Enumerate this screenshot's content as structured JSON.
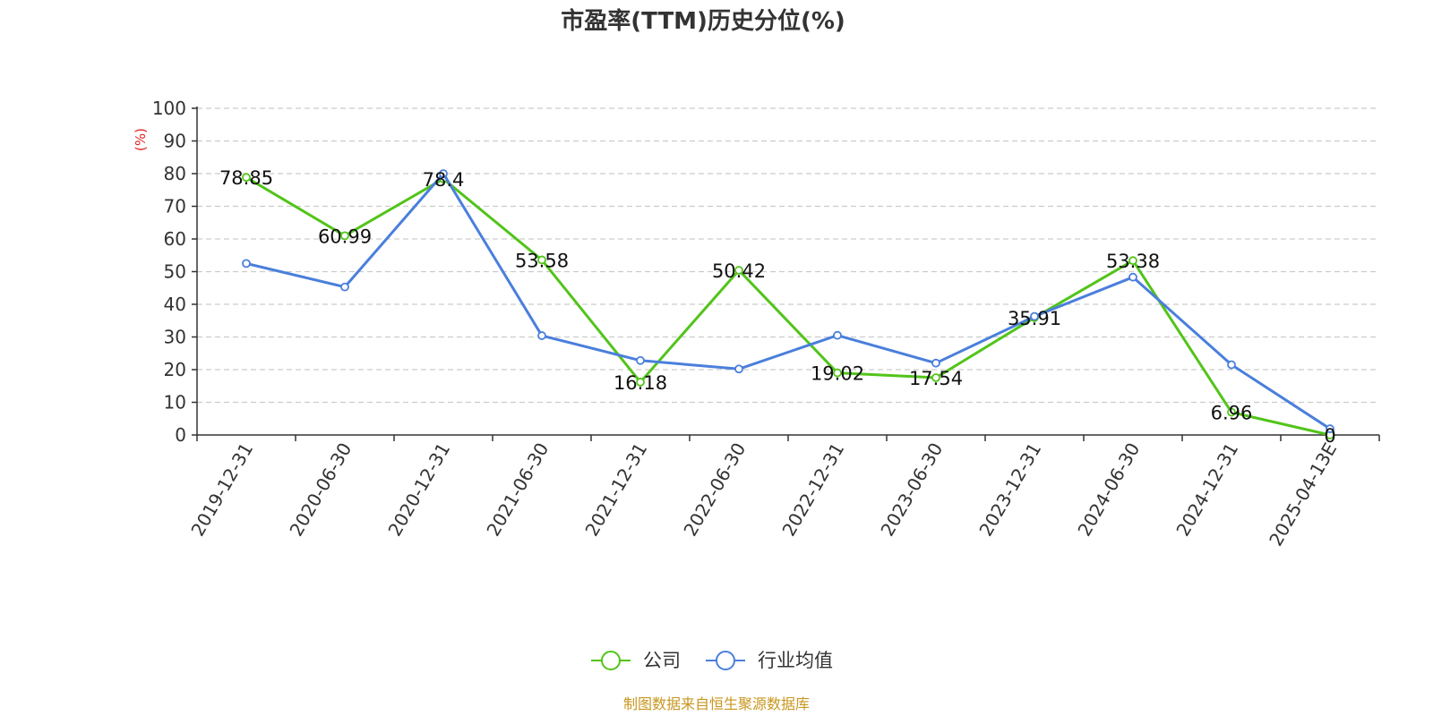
{
  "title": "市盈率(TTM)历史分位(%)",
  "source": "制图数据来自恒生聚源数据库",
  "colors": {
    "company": "#52c41a",
    "industry": "#4a7fdc",
    "grid": "#cccccc",
    "unit": "#e02020",
    "source": "#c8961e"
  },
  "chart_data": {
    "type": "line",
    "title": "市盈率(TTM)历史分位(%)",
    "ylabel": "(%)",
    "ylim": [
      0,
      100
    ],
    "yticks": [
      "0",
      "10",
      "20",
      "30",
      "40",
      "50",
      "60",
      "70",
      "80",
      "90",
      "100"
    ],
    "grid": true,
    "legend_position": "bottom-center",
    "categories": [
      "2019-12-31",
      "2020-06-30",
      "2020-12-31",
      "2021-06-30",
      "2021-12-31",
      "2022-06-30",
      "2022-12-31",
      "2023-06-30",
      "2023-12-31",
      "2024-06-30",
      "2024-12-31",
      "2025-04-13E"
    ],
    "series": [
      {
        "name": "公司",
        "values": [
          78.85,
          60.99,
          78.4,
          53.58,
          16.18,
          50.42,
          19.02,
          17.54,
          35.91,
          53.38,
          6.96,
          0
        ],
        "labels": [
          "78.85",
          "60.99",
          "78.4",
          "53.58",
          "16.18",
          "50.42",
          "19.02",
          "17.54",
          "35.91",
          "53.38",
          "6.96",
          "0"
        ],
        "show_labels": true
      },
      {
        "name": "行业均值",
        "values": [
          52.5,
          45.3,
          80.0,
          30.4,
          22.8,
          20.2,
          30.5,
          22.0,
          36.3,
          48.3,
          21.5,
          1.9
        ],
        "show_labels": false
      }
    ]
  }
}
